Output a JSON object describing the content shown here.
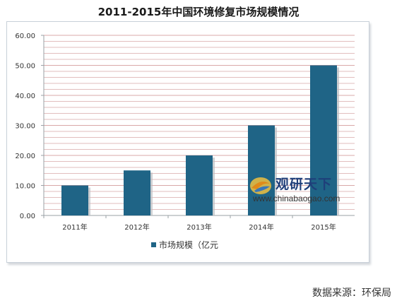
{
  "chart_data": {
    "type": "bar",
    "title": "2011-2015年中国环境修复市场规模情况",
    "categories": [
      "2011年",
      "2012年",
      "2013年",
      "2014年",
      "2015年"
    ],
    "series": [
      {
        "name": "市场规模（亿元",
        "values": [
          10,
          15,
          20,
          30,
          50
        ]
      }
    ],
    "y_ticks": [
      "0.00",
      "10.00",
      "20.00",
      "30.00",
      "40.00",
      "50.00",
      "60.00"
    ],
    "ylim": [
      0,
      60
    ],
    "grid": true,
    "legend_position": "bottom",
    "bar_color": "#1f6486",
    "grid_color": "#d9a8a8",
    "plot_background": "#ffffff"
  },
  "watermark": {
    "title": "观研天下",
    "url": "www.chinabaogao.com"
  },
  "source": "数据来源：环保局"
}
